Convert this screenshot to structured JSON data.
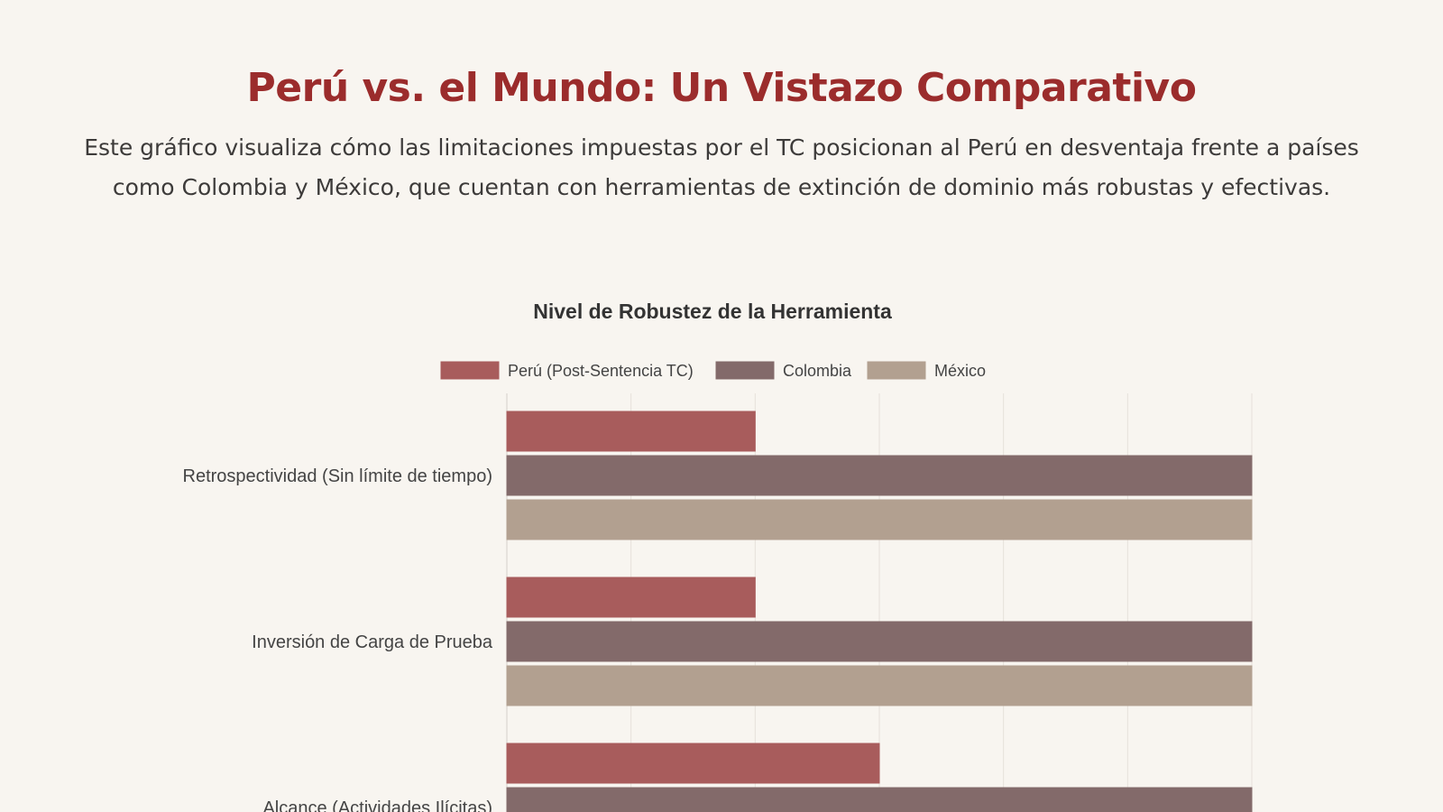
{
  "page": {
    "heading": "Perú vs. el Mundo: Un Vistazo Comparativo",
    "intro": "Este gráfico visualiza cómo las limitaciones impuestas por el TC posicionan al Perú en desventaja frente a países como Colombia y México, que cuentan con herramientas de extinción de dominio más robustas y efectivas."
  },
  "chart_data": {
    "type": "bar",
    "orientation": "horizontal",
    "title": "Nivel de Robustez de la Herramienta",
    "categories": [
      "Retrospectividad (Sin límite de tiempo)",
      "Inversión de Carga de Prueba",
      "Alcance (Actividades Ilícitas)"
    ],
    "series": [
      {
        "name": "Perú (Post-Sentencia TC)",
        "values": [
          2,
          2,
          3
        ],
        "color": "#a85c5c"
      },
      {
        "name": "Colombia",
        "values": [
          6,
          6,
          6
        ],
        "color": "#836a6a"
      },
      {
        "name": "México",
        "values": [
          6,
          6,
          null
        ],
        "color": "#b2a090"
      }
    ],
    "xlim": [
      0,
      6
    ],
    "x_ticks_visible": false,
    "grid": true,
    "legend": "top-center"
  }
}
